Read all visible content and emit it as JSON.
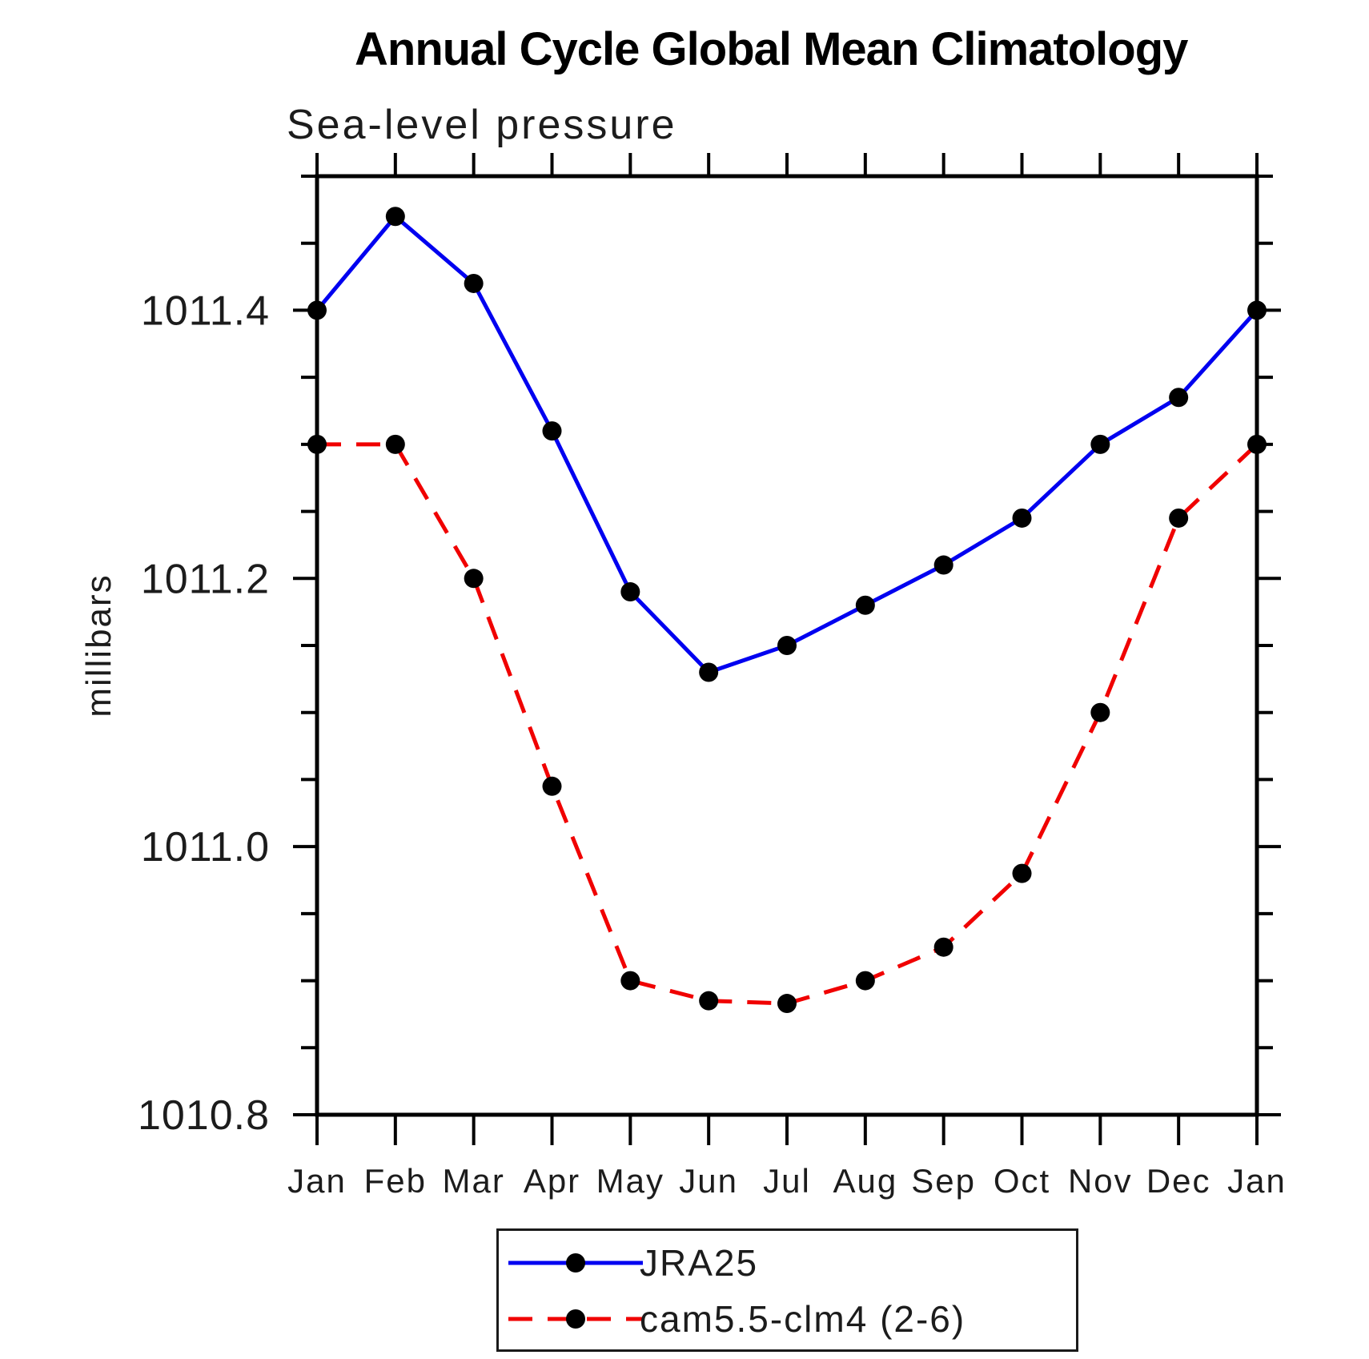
{
  "title": "Annual Cycle Global Mean Climatology",
  "subtitle": "Sea-level pressure",
  "y_axis_title": "millibars",
  "legend": {
    "entries": [
      {
        "label": "JRA25",
        "color": "#0000f0",
        "line_style": "solid",
        "marker": "filled-circle",
        "marker_color": "#000000"
      },
      {
        "label": "cam5.5-clm4 (2-6)",
        "color": "#f00000",
        "line_style": "dashed",
        "marker": "filled-circle",
        "marker_color": "#000000"
      }
    ]
  },
  "chart_data": {
    "type": "line",
    "title": "Annual Cycle Global Mean Climatology",
    "subtitle": "Sea-level pressure",
    "xlabel": "",
    "ylabel": "millibars",
    "categories": [
      "Jan",
      "Feb",
      "Mar",
      "Apr",
      "May",
      "Jun",
      "Jul",
      "Aug",
      "Sep",
      "Oct",
      "Nov",
      "Dec",
      "Jan"
    ],
    "series": [
      {
        "name": "JRA25",
        "color": "#0000f0",
        "style": "solid",
        "values": [
          1011.4,
          1011.47,
          1011.42,
          1011.31,
          1011.19,
          1011.13,
          1011.15,
          1011.18,
          1011.21,
          1011.245,
          1011.3,
          1011.335,
          1011.4
        ]
      },
      {
        "name": "cam5.5-clm4 (2-6)",
        "color": "#f00000",
        "style": "dashed",
        "values": [
          1011.3,
          1011.3,
          1011.2,
          1011.045,
          1010.9,
          1010.885,
          1010.883,
          1010.9,
          1010.925,
          1010.98,
          1011.1,
          1011.245,
          1011.3
        ]
      }
    ],
    "ylim": [
      1010.8,
      1011.5
    ],
    "yticks_major": [
      1010.8,
      1011.0,
      1011.2,
      1011.4
    ],
    "ytick_labels": [
      "1010.8",
      "1011.0",
      "1011.2",
      "1011.4"
    ],
    "ytick_minor_step": 0.05,
    "marker": "filled-circle",
    "marker_color": "#000000",
    "axis_color": "#000000",
    "grid": false,
    "legend_position": "bottom-center"
  }
}
